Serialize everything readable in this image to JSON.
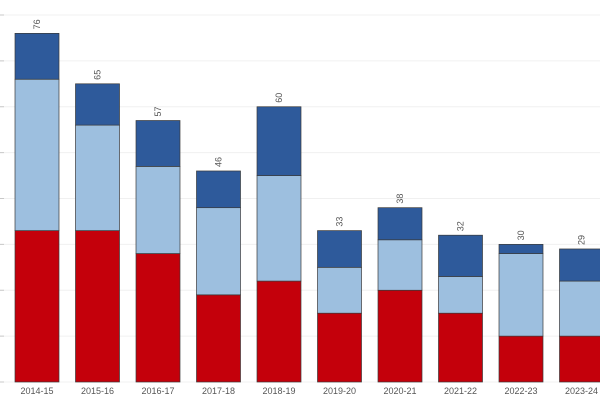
{
  "chart_data": {
    "type": "bar",
    "stacked": true,
    "categories": [
      "2014-15",
      "2015-16",
      "2016-17",
      "2017-18",
      "2018-19",
      "2019-20",
      "2020-21",
      "2021-22",
      "2022-23",
      "2023-24"
    ],
    "series": [
      {
        "color": "#c4000b",
        "values": [
          33,
          33,
          28,
          19,
          22,
          15,
          20,
          15,
          10,
          10
        ]
      },
      {
        "color": "#9dbfdf",
        "values": [
          33,
          23,
          19,
          19,
          23,
          10,
          11,
          8,
          18,
          12
        ]
      },
      {
        "color": "#2e5a9b",
        "values": [
          10,
          9,
          10,
          8,
          15,
          8,
          7,
          9,
          2,
          7
        ]
      }
    ],
    "totals": [
      76,
      65,
      57,
      46,
      60,
      33,
      38,
      32,
      30,
      29
    ],
    "ylim": [
      0,
      80
    ],
    "grid": true
  }
}
